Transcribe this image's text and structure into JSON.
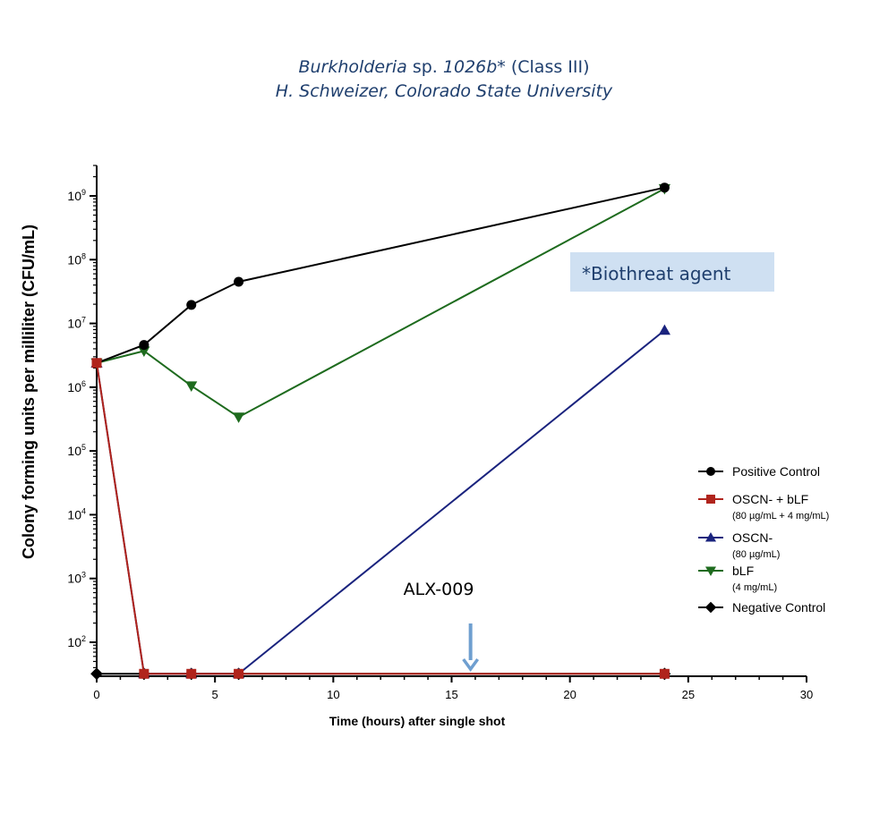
{
  "header": {
    "title_line1_italic": "Burkholderia",
    "title_line1_sp": " sp. ",
    "title_line1_strain": "1026b*",
    "title_line1_class": " (Class III)",
    "title_line2": "H. Schweizer, Colorado State University"
  },
  "callout": {
    "text": "*Biothreat agent",
    "background": "#cfe0f2",
    "color": "#1f3f6e"
  },
  "annotation": {
    "text": "ALX-009",
    "arrow_x_hours": 15.8,
    "arrow_color": "#6f9fd0"
  },
  "chart_data": {
    "type": "line",
    "title": "",
    "xlabel": "Time (hours) after single shot",
    "ylabel": "Colony forming units per milliliter (CFU/mL)",
    "xlim": [
      0,
      30
    ],
    "x_ticks": [
      0,
      5,
      10,
      15,
      20,
      25,
      30
    ],
    "y_scale": "log",
    "ylim": [
      31,
      3000000000
    ],
    "y_tick_exponents": [
      2,
      3,
      4,
      5,
      6,
      7,
      8,
      9
    ],
    "y_tick_base": "10",
    "grid": false,
    "legend_position": "right",
    "series": [
      {
        "name": "Positive Control",
        "note": "",
        "color": "#000000",
        "marker": "circle",
        "x": [
          0,
          2,
          4,
          6,
          24
        ],
        "y": [
          2400000,
          4600000,
          19500000,
          45000000,
          1350000000
        ]
      },
      {
        "name": "OSCN- + bLF",
        "note": "(80 µg/mL + 4 mg/mL)",
        "color": "#b0241c",
        "marker": "square",
        "x": [
          0,
          2,
          4,
          6,
          24
        ],
        "y": [
          2400000,
          32,
          32,
          32,
          32
        ]
      },
      {
        "name": "OSCN-",
        "note": "(80 µg/mL)",
        "color": "#1a237e",
        "marker": "triangle-up",
        "x": [
          0,
          2,
          4,
          6,
          24
        ],
        "y": [
          2400000,
          32,
          32,
          32,
          7800000
        ]
      },
      {
        "name": "bLF",
        "note": "(4 mg/mL)",
        "color": "#1e6b1e",
        "marker": "triangle-down",
        "x": [
          0,
          2,
          4,
          6,
          24
        ],
        "y": [
          2400000,
          3700000,
          1050000,
          340000,
          1300000000
        ]
      },
      {
        "name": "Negative Control",
        "note": "",
        "color": "#000000",
        "marker": "diamond",
        "x": [
          0,
          2,
          4,
          6,
          24
        ],
        "y": [
          32,
          32,
          32,
          32,
          32
        ]
      }
    ]
  }
}
